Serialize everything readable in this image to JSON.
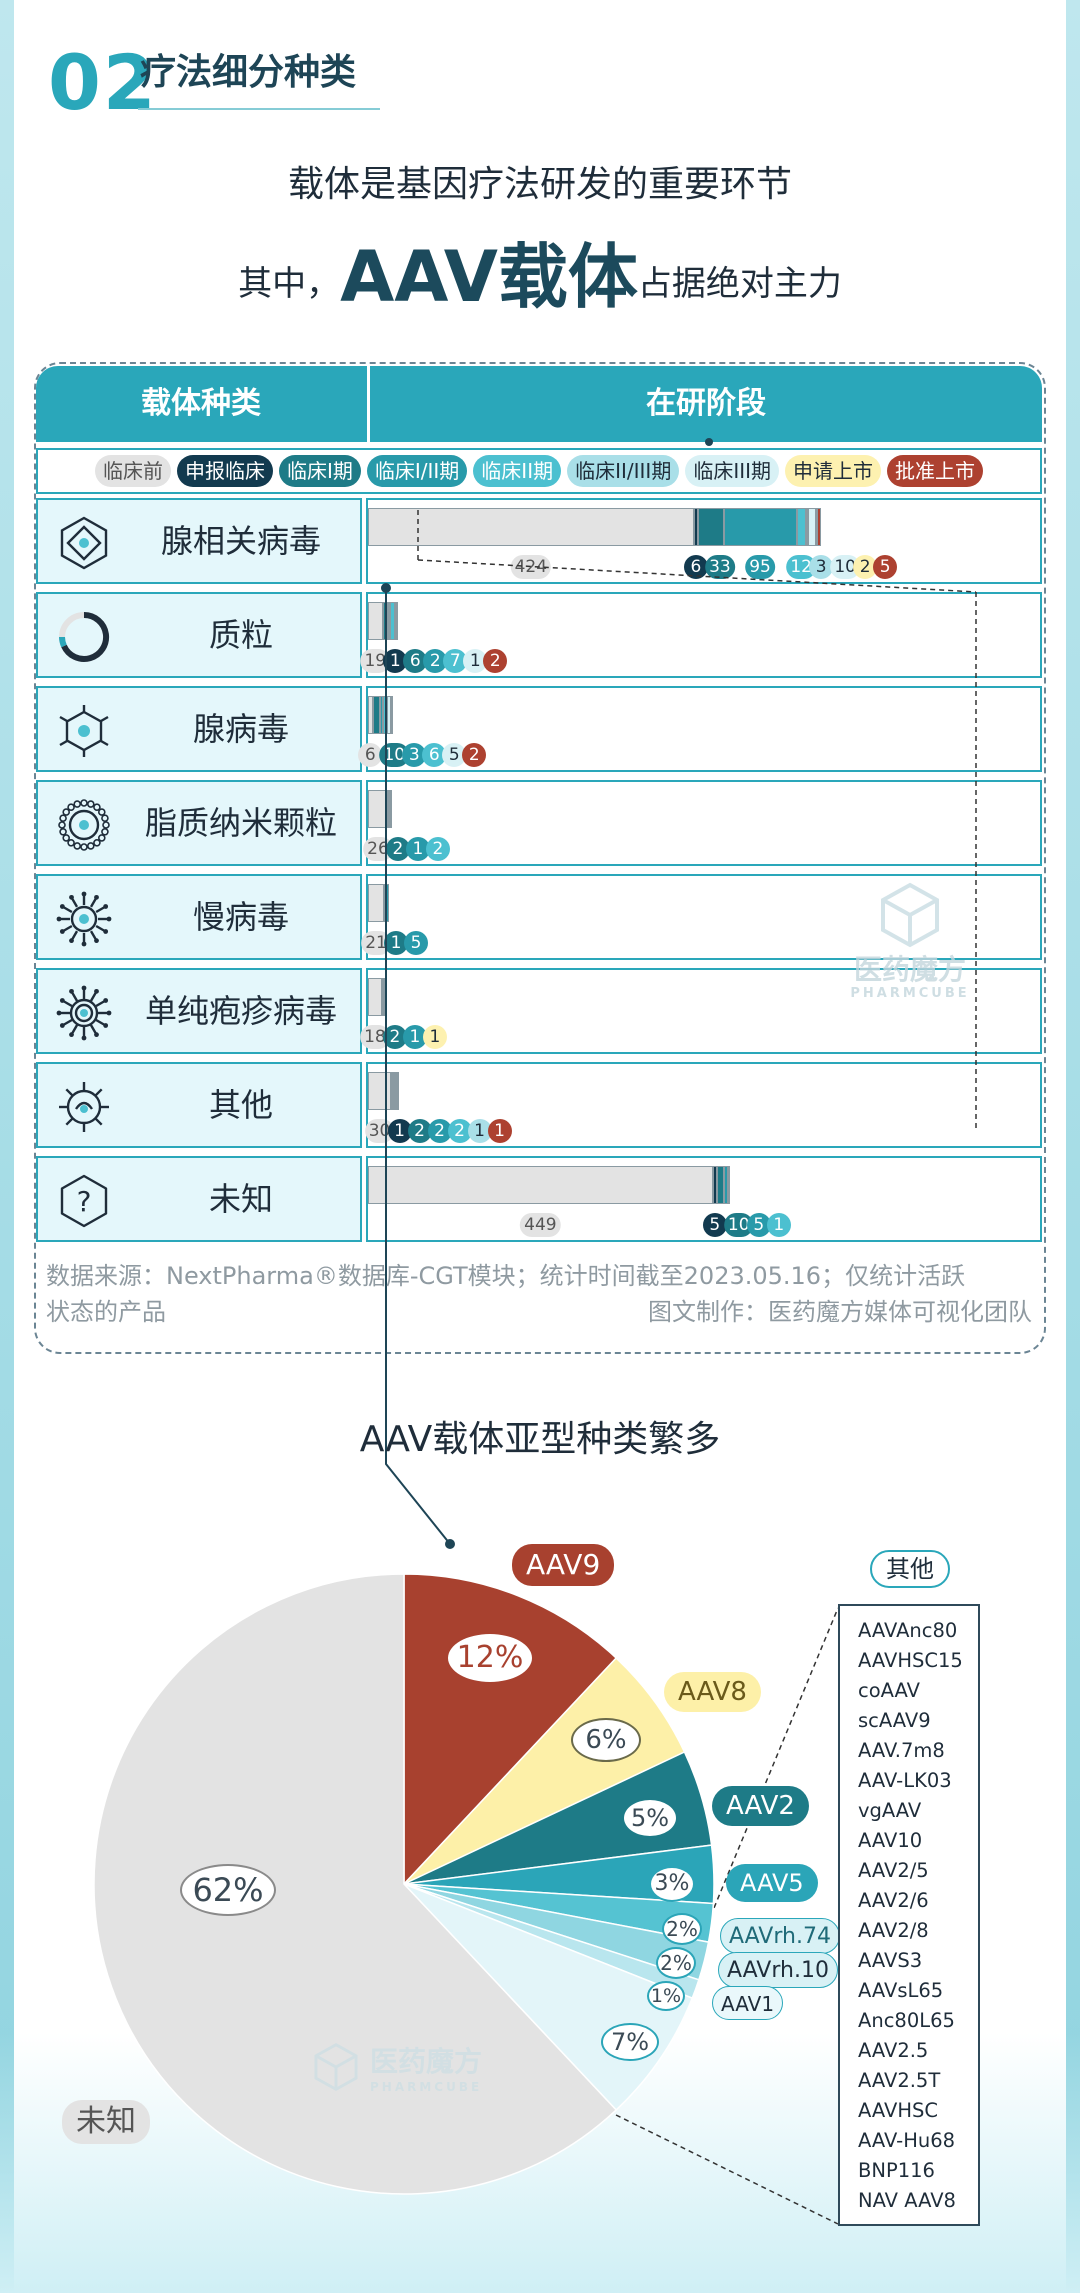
{
  "section": {
    "number": "02",
    "title": "疗法细分种类"
  },
  "headline": {
    "line1": "载体是基因疗法研发的重要环节",
    "line2_prefix": "其中，",
    "line2_emph": "AAV载体",
    "line2_suffix": "占据绝对主力"
  },
  "table": {
    "col1": "载体种类",
    "col2": "在研阶段"
  },
  "legend": [
    {
      "label": "临床前",
      "bg": "#e3e3e3",
      "fg": "#555555"
    },
    {
      "label": "申报临床",
      "bg": "#123a4f",
      "fg": "#ffffff"
    },
    {
      "label": "临床I期",
      "bg": "#1e7b87",
      "fg": "#ffffff"
    },
    {
      "label": "临床I/II期",
      "bg": "#289aaa",
      "fg": "#ffffff"
    },
    {
      "label": "临床II期",
      "bg": "#4cc0d0",
      "fg": "#ffffff"
    },
    {
      "label": "临床II/III期",
      "bg": "#a9dfe8",
      "fg": "#1f2d3a"
    },
    {
      "label": "临床III期",
      "bg": "#d8f1f5",
      "fg": "#1f2d3a"
    },
    {
      "label": "申请上市",
      "bg": "#fdf1b0",
      "fg": "#1f2d3a"
    },
    {
      "label": "批准上市",
      "bg": "#ad4130",
      "fg": "#ffffff"
    }
  ],
  "icon_names": [
    "aav-hexagon-icon",
    "plasmid-ring-icon",
    "adenovirus-icon",
    "lipid-nanoparticle-icon",
    "lentivirus-icon",
    "herpes-virus-icon",
    "other-virus-icon",
    "unknown-question-icon"
  ],
  "chart_data": [
    {
      "type": "bar",
      "orientation": "horizontal",
      "stacked": true,
      "stages": [
        "临床前",
        "申报临床",
        "临床I期",
        "临床I/II期",
        "临床II期",
        "临床II/III期",
        "临床III期",
        "申请上市",
        "批准上市"
      ],
      "categories": [
        "腺相关病毒",
        "质粒",
        "腺病毒",
        "脂质纳米颗粒",
        "慢病毒",
        "单纯疱疹病毒",
        "其他",
        "未知"
      ],
      "series": [
        {
          "name": "临床前",
          "values": [
            424,
            19,
            6,
            26,
            21,
            18,
            30,
            449
          ]
        },
        {
          "name": "申报临床",
          "values": [
            6,
            1,
            0,
            0,
            0,
            0,
            1,
            5
          ]
        },
        {
          "name": "临床I期",
          "values": [
            33,
            6,
            10,
            2,
            1,
            2,
            2,
            10
          ]
        },
        {
          "name": "临床I/II期",
          "values": [
            95,
            2,
            3,
            1,
            5,
            1,
            2,
            5
          ]
        },
        {
          "name": "临床II期",
          "values": [
            12,
            7,
            6,
            2,
            0,
            0,
            2,
            1
          ]
        },
        {
          "name": "临床II/III期",
          "values": [
            3,
            0,
            0,
            0,
            0,
            0,
            1,
            0
          ]
        },
        {
          "name": "临床III期",
          "values": [
            10,
            1,
            5,
            0,
            0,
            0,
            0,
            0
          ]
        },
        {
          "name": "申请上市",
          "values": [
            2,
            0,
            0,
            0,
            0,
            1,
            0,
            0
          ]
        },
        {
          "name": "批准上市",
          "values": [
            5,
            2,
            2,
            0,
            0,
            0,
            1,
            0
          ]
        }
      ],
      "labels": [
        [
          "424",
          "6",
          "33",
          "95",
          "12",
          "3",
          "10",
          "2",
          "5"
        ],
        [
          "19",
          "1",
          "6",
          "2",
          "7",
          "1",
          "2"
        ],
        [
          "6",
          "10",
          "3",
          "6",
          "5",
          "2"
        ],
        [
          "26",
          "2",
          "1",
          "2"
        ],
        [
          "21",
          "1",
          "5"
        ],
        [
          "18",
          "2",
          "1",
          "1"
        ],
        [
          "30",
          "1",
          "2",
          "2",
          "2",
          "1",
          "1"
        ],
        [
          "449",
          "5",
          "10",
          "5",
          "1"
        ]
      ],
      "grid": false,
      "legend_position": "top"
    },
    {
      "type": "pie",
      "title": "AAV载体亚型种类繁多",
      "slices": [
        {
          "name": "AAV9",
          "value": 12,
          "label": "12%",
          "color": "#a8412f"
        },
        {
          "name": "AAV8",
          "value": 6,
          "label": "6%",
          "color": "#fdf0a8"
        },
        {
          "name": "AAV2",
          "value": 5,
          "label": "5%",
          "color": "#1e7b87"
        },
        {
          "name": "AAV5",
          "value": 3,
          "label": "3%",
          "color": "#2ba5b8"
        },
        {
          "name": "AAVrh.74",
          "value": 2,
          "label": "2%",
          "color": "#55c3d2"
        },
        {
          "name": "AAVrh.10",
          "value": 2,
          "label": "2%",
          "color": "#8fd6e1"
        },
        {
          "name": "AAV1",
          "value": 1,
          "label": "1%",
          "color": "#b9e6ee"
        },
        {
          "name": "其他",
          "value": 7,
          "label": "7%",
          "color": "#e3f5f9"
        },
        {
          "name": "未知",
          "value": 62,
          "label": "62%",
          "color": "#e3e3e3"
        }
      ],
      "others_list": [
        "AAVAnc80",
        "AAVHSC15",
        "coAAV",
        "scAAV9",
        "AAV.7m8",
        "AAV-LK03",
        "vgAAV",
        "AAV10",
        "AAV2/5",
        "AAV2/6",
        "AAV2/8",
        "AAVS3",
        "AAVsL65",
        "Anc80L65",
        "AAV2.5",
        "AAV2.5T",
        "AAVHSC",
        "AAV-Hu68",
        "BNP116",
        "NAV AAV8"
      ]
    }
  ],
  "notes": {
    "source": "数据来源：NextPharma®数据库-CGT模块；统计时间截至2023.05.16；仅统计活跃",
    "source2": "状态的产品",
    "credit": "图文制作：医药魔方媒体可视化团队"
  },
  "watermark": {
    "cn": "医药魔方",
    "en": "PHARMCUBE"
  }
}
